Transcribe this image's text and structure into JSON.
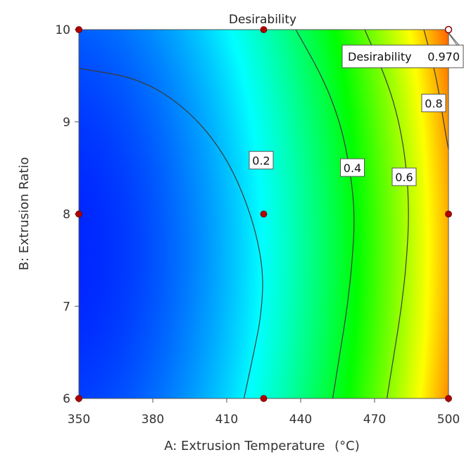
{
  "chart_data": {
    "type": "heatmap",
    "title": "Desirability",
    "xlabel": "A: Extrusion Temperature",
    "xlabel_unit": "(°C)",
    "ylabel": "B: Extrusion Ratio",
    "xlim": [
      350,
      500
    ],
    "ylim": [
      6,
      10
    ],
    "x_ticks": [
      "350",
      "380",
      "410",
      "440",
      "470",
      "500"
    ],
    "y_ticks": [
      "6",
      "7",
      "8",
      "9",
      "10"
    ],
    "colormap": [
      "#0000ff",
      "#00ffff",
      "#00ff00",
      "#ffff00",
      "#ff0000"
    ],
    "contours": [
      {
        "level": 0.2,
        "label": "0.2",
        "points": [
          [
            350,
            9.58
          ],
          [
            375,
            9.47
          ],
          [
            395,
            9.12
          ],
          [
            410,
            8.62
          ],
          [
            420,
            8.0
          ],
          [
            425,
            7.4
          ],
          [
            424,
            6.9
          ],
          [
            421,
            6.5
          ],
          [
            417,
            6.0
          ]
        ],
        "label_at": [
          424,
          8.58
        ]
      },
      {
        "level": 0.4,
        "label": "0.4",
        "points": [
          [
            438,
            10.0
          ],
          [
            449,
            9.48
          ],
          [
            456,
            9.0
          ],
          [
            460,
            8.5
          ],
          [
            462,
            8.0
          ],
          [
            461,
            7.5
          ],
          [
            459,
            7.0
          ],
          [
            456,
            6.5
          ],
          [
            453,
            6.0
          ]
        ],
        "label_at": [
          461,
          8.5
        ]
      },
      {
        "level": 0.6,
        "label": "0.6",
        "points": [
          [
            466,
            10.0
          ],
          [
            475,
            9.45
          ],
          [
            480,
            9.0
          ],
          [
            483,
            8.5
          ],
          [
            484,
            8.0
          ],
          [
            483,
            7.5
          ],
          [
            481,
            7.0
          ],
          [
            478,
            6.5
          ],
          [
            475,
            6.0
          ]
        ],
        "label_at": [
          482,
          8.4
        ]
      },
      {
        "level": 0.8,
        "label": "0.8",
        "points": [
          [
            490,
            10.0
          ],
          [
            495,
            9.5
          ],
          [
            498,
            9.0
          ],
          [
            500,
            8.7
          ]
        ],
        "label_at": [
          494,
          9.2
        ]
      }
    ],
    "design_points": [
      [
        350,
        10
      ],
      [
        425,
        10
      ],
      [
        350,
        8
      ],
      [
        425,
        8
      ],
      [
        500,
        8
      ],
      [
        350,
        6
      ],
      [
        425,
        6
      ],
      [
        500,
        6
      ]
    ],
    "optimum": {
      "x": 500,
      "y": 10,
      "label": "Desirability",
      "value": "0.970"
    }
  }
}
